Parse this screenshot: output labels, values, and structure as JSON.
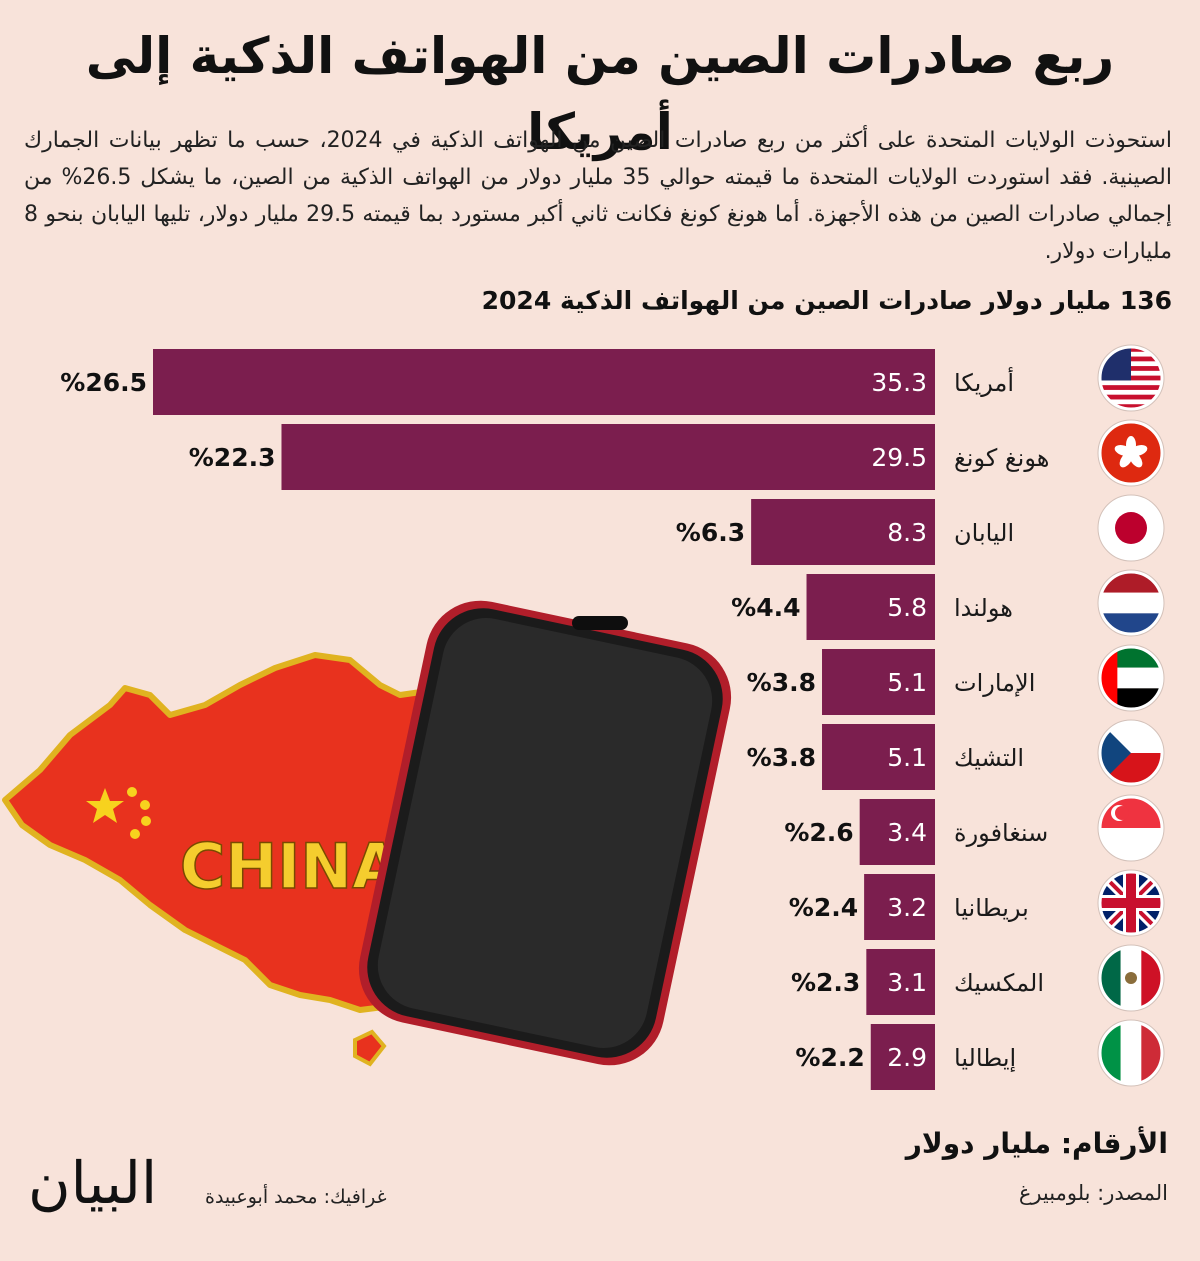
{
  "title": "ربع صادرات الصين من الهواتف الذكية إلى أمريكا",
  "intro": "استحوذت الولايات المتحدة على أكثر من ربع صادرات الصين من الهواتف الذكية في 2024، حسب ما تظهر بيانات الجمارك الصينية. فقد استوردت الولايات المتحدة ما قيمته حوالي 35 مليار دولار من الهواتف الذكية من الصين، ما يشكل 26.5%  من إجمالي صادرات الصين من هذه الأجهزة. أما هونغ كونغ فكانت ثاني أكبر مستورد بما قيمته 29.5 مليار دولار، تليها اليابان بنحو 8 مليارات دولار.",
  "map_label": "CHINA",
  "chart_data": {
    "type": "bar",
    "orientation": "horizontal",
    "title": "136 مليار دولار صادرات الصين من الهواتف الذكية 2024",
    "categories": [
      "أمريكا",
      "هونغ كونغ",
      "اليابان",
      "هولندا",
      "الإمارات",
      "التشيك",
      "سنغافورة",
      "بريطانيا",
      "المكسيك",
      "إيطاليا"
    ],
    "values": [
      35.3,
      29.5,
      8.3,
      5.8,
      5.1,
      5.1,
      3.4,
      3.2,
      3.1,
      2.9
    ],
    "value_labels": [
      "35.3",
      "29.5",
      "8.3",
      "5.8",
      "5.1",
      "5.1",
      "3.4",
      "3.2",
      "3.1",
      "2.9"
    ],
    "share_labels": [
      "%26.5",
      "%22.3",
      "%6.3",
      "%4.4",
      "%3.8",
      "%3.8",
      "%2.6",
      "%2.4",
      "%2.3",
      "%2.2"
    ],
    "flags": [
      "usa-flag-icon",
      "hong-kong-flag-icon",
      "japan-flag-icon",
      "netherlands-flag-icon",
      "uae-flag-icon",
      "czech-flag-icon",
      "singapore-flag-icon",
      "uk-flag-icon",
      "mexico-flag-icon",
      "italy-flag-icon"
    ],
    "bar_color": "#7b1e4e",
    "xlim": [
      0,
      35.3
    ]
  },
  "units_label": "الأرقام: مليار دولار",
  "source_label": "المصدر: بلومبيرغ",
  "credit_label": "غرافيك: محمد أبوعبيدة",
  "logo_text": "البيان"
}
